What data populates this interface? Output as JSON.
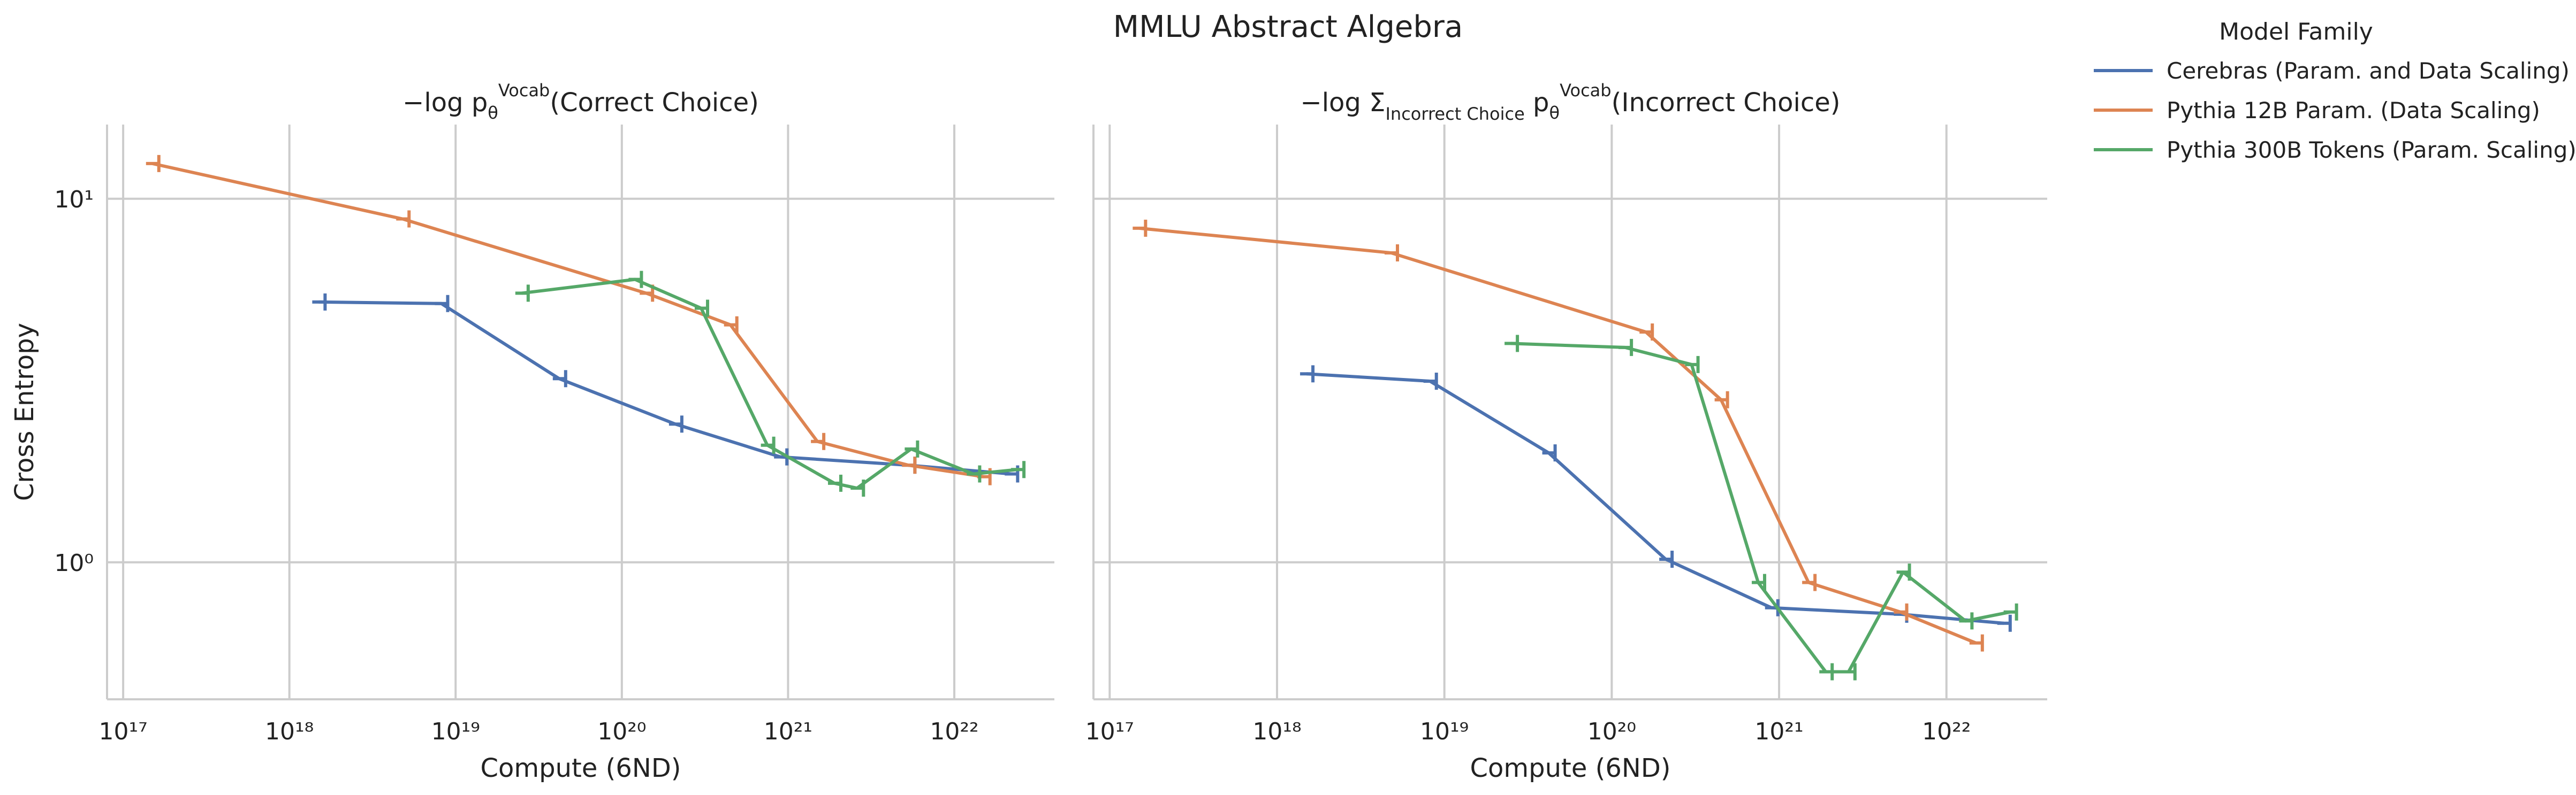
{
  "suptitle": "MMLU Abstract Algebra",
  "legend": {
    "title": "Model Family",
    "entries": [
      {
        "label": "Cerebras (Param. and Data Scaling)",
        "color": "#4c72b0"
      },
      {
        "label": "Pythia 12B Param. (Data Scaling)",
        "color": "#dd8452"
      },
      {
        "label": "Pythia 300B Tokens (Param. Scaling)",
        "color": "#55a868"
      }
    ]
  },
  "chart_data": [
    {
      "type": "line",
      "title_parts": [
        "−log ",
        "p",
        "θ",
        "Vocab",
        "(Correct Choice)"
      ],
      "xlabel": "Compute (6ND)",
      "ylabel": "Cross Entropy",
      "xscale": "log",
      "yscale": "log",
      "xlim": [
        8e+16,
        4e+22
      ],
      "ylim": [
        0.42,
        16
      ],
      "xticks": [
        1e+17,
        1e+18,
        1e+19,
        1e+20,
        1e+21,
        1e+22
      ],
      "yticks": [
        1,
        10
      ],
      "grid": true,
      "series": [
        {
          "name": "Cerebras (Param. and Data Scaling)",
          "color": "#4c72b0",
          "x": [
            1.5e+18,
            8.2e+18,
            4.2e+19,
            2.1e+20,
            9e+20,
            5.3e+21,
            2.2e+22
          ],
          "y": [
            5.2,
            5.15,
            3.2,
            2.4,
            1.95,
            1.85,
            1.75
          ]
        },
        {
          "name": "Pythia 12B Param. (Data Scaling)",
          "color": "#dd8452",
          "x": [
            1.5e+17,
            4.8e+18,
            1.4e+20,
            4.5e+20,
            1.5e+21,
            5.3e+21,
            1.5e+22
          ],
          "y": [
            12.5,
            8.8,
            5.5,
            4.5,
            2.15,
            1.85,
            1.72
          ]
        },
        {
          "name": "Pythia 300B Tokens (Param. Scaling)",
          "color": "#55a868",
          "x": [
            2.5e+19,
            1.2e+20,
            3e+20,
            7.5e+20,
            1.9e+21,
            2.6e+21,
            5.5e+21,
            1.3e+22,
            2.4e+22
          ],
          "y": [
            5.5,
            6.0,
            5.0,
            2.1,
            1.65,
            1.6,
            2.05,
            1.75,
            1.8
          ]
        }
      ]
    },
    {
      "type": "line",
      "title_parts": [
        "−log Σ",
        "Incorrect Choice",
        " p",
        "θ",
        "Vocab",
        "(Incorrect Choice)"
      ],
      "xlabel": "Compute (6ND)",
      "ylabel": "",
      "xscale": "log",
      "yscale": "log",
      "xlim": [
        8e+16,
        4e+22
      ],
      "ylim": [
        0.42,
        16
      ],
      "xticks": [
        1e+17,
        1e+18,
        1e+19,
        1e+20,
        1e+21,
        1e+22
      ],
      "yticks": [
        1,
        10
      ],
      "grid": true,
      "series": [
        {
          "name": "Cerebras (Param. and Data Scaling)",
          "color": "#4c72b0",
          "x": [
            1.5e+18,
            8.2e+18,
            4.2e+19,
            2.1e+20,
            9e+20,
            5.3e+21,
            2.2e+22
          ],
          "y": [
            3.3,
            3.15,
            2.0,
            1.02,
            0.75,
            0.72,
            0.68
          ]
        },
        {
          "name": "Pythia 12B Param. (Data Scaling)",
          "color": "#dd8452",
          "x": [
            1.5e+17,
            4.8e+18,
            1.6e+20,
            4.5e+20,
            1.5e+21,
            5.3e+21,
            1.5e+22
          ],
          "y": [
            8.3,
            7.1,
            4.3,
            2.8,
            0.88,
            0.73,
            0.6
          ]
        },
        {
          "name": "Pythia 300B Tokens (Param. Scaling)",
          "color": "#55a868",
          "x": [
            2.5e+19,
            1.2e+20,
            3e+20,
            7.5e+20,
            1.9e+21,
            2.6e+21,
            5.5e+21,
            1.3e+22,
            2.4e+22
          ],
          "y": [
            4.0,
            3.9,
            3.5,
            0.88,
            0.5,
            0.5,
            0.94,
            0.69,
            0.73
          ]
        }
      ]
    }
  ]
}
